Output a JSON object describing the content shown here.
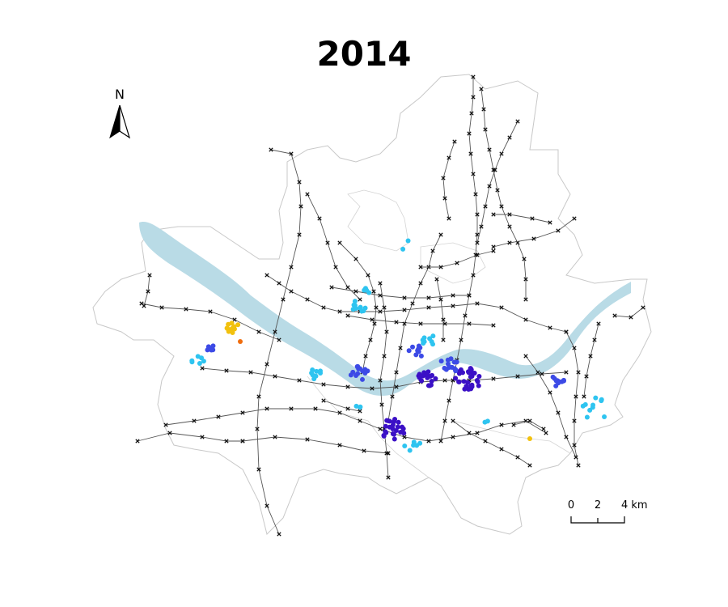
{
  "title": "2014",
  "north_arrow": {
    "label": "N"
  },
  "scale_bar": {
    "labels": [
      "0",
      "2",
      "4 km"
    ]
  },
  "colors": {
    "river": "#b9dbe6",
    "boundary": "#c8c8c8",
    "rail": "#555555",
    "station": "#111111",
    "cluster_very_high": "#3b10c6",
    "cluster_high": "#3c4ae6",
    "cluster_medium": "#2ec4f0",
    "cluster_low": "#f2c10e",
    "cluster_very_low": "#f06d0e"
  }
}
